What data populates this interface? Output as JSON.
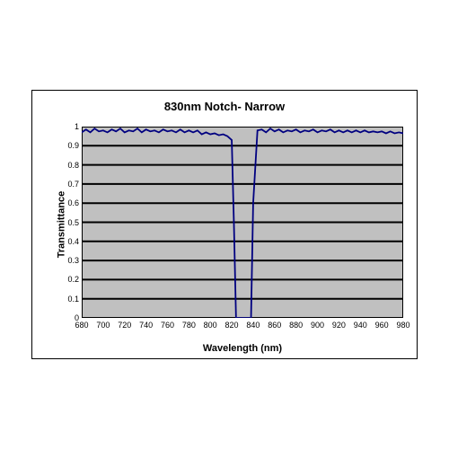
{
  "chart": {
    "type": "line",
    "title": "830nm Notch- Narrow",
    "title_fontsize": 13,
    "xlabel": "Wavelength (nm)",
    "ylabel": "Transmittance",
    "label_fontsize": 11,
    "tick_fontsize": 9,
    "xlim": [
      680,
      980
    ],
    "ylim": [
      0,
      1
    ],
    "xtick_step": 20,
    "ytick_step": 0.1,
    "xticks": [
      680,
      700,
      720,
      740,
      760,
      780,
      800,
      820,
      840,
      860,
      880,
      900,
      920,
      940,
      960,
      980
    ],
    "yticks": [
      0,
      0.1,
      0.2,
      0.3,
      0.4,
      0.5,
      0.6,
      0.7,
      0.8,
      0.9,
      1
    ],
    "background_color": "#ffffff",
    "plot_background_color": "#c0c0c0",
    "grid_color": "#000000",
    "border_color": "#000000",
    "line_color": "#000080",
    "line_width": 1.8,
    "series": {
      "x": [
        680,
        684,
        688,
        692,
        696,
        700,
        704,
        708,
        712,
        716,
        720,
        724,
        728,
        732,
        736,
        740,
        744,
        748,
        752,
        756,
        760,
        764,
        768,
        772,
        776,
        780,
        784,
        788,
        792,
        796,
        800,
        804,
        808,
        812,
        816,
        820,
        822,
        824,
        826,
        828,
        830,
        832,
        834,
        836,
        838,
        840,
        844,
        848,
        852,
        856,
        860,
        864,
        868,
        872,
        876,
        880,
        884,
        888,
        892,
        896,
        900,
        904,
        908,
        912,
        916,
        920,
        924,
        928,
        932,
        936,
        940,
        944,
        948,
        952,
        956,
        960,
        964,
        968,
        972,
        976,
        980
      ],
      "y": [
        0.97,
        0.985,
        0.97,
        0.99,
        0.975,
        0.98,
        0.97,
        0.985,
        0.975,
        0.99,
        0.97,
        0.98,
        0.975,
        0.99,
        0.97,
        0.985,
        0.975,
        0.98,
        0.97,
        0.985,
        0.975,
        0.98,
        0.97,
        0.985,
        0.97,
        0.98,
        0.97,
        0.98,
        0.96,
        0.97,
        0.96,
        0.965,
        0.955,
        0.96,
        0.95,
        0.93,
        0.5,
        0.0,
        0.0,
        0.0,
        0.0,
        0.0,
        0.0,
        0.0,
        0.0,
        0.6,
        0.98,
        0.985,
        0.97,
        0.99,
        0.975,
        0.985,
        0.97,
        0.98,
        0.975,
        0.985,
        0.97,
        0.98,
        0.975,
        0.985,
        0.97,
        0.98,
        0.975,
        0.985,
        0.97,
        0.98,
        0.97,
        0.98,
        0.97,
        0.98,
        0.97,
        0.98,
        0.97,
        0.975,
        0.97,
        0.975,
        0.965,
        0.975,
        0.965,
        0.97,
        0.965
      ]
    }
  }
}
